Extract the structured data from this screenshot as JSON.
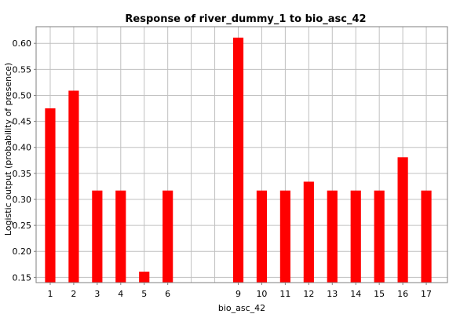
{
  "chart_data": {
    "type": "bar",
    "title": "Response of river_dummy_1 to bio_asc_42",
    "xlabel": "bio_asc_42",
    "ylabel": "Logistic output (probability of presence)",
    "categories": [
      "1",
      "2",
      "3",
      "4",
      "5",
      "6",
      "9",
      "10",
      "11",
      "12",
      "13",
      "14",
      "15",
      "16",
      "17"
    ],
    "x": [
      1,
      2,
      3,
      4,
      5,
      6,
      9,
      10,
      11,
      12,
      13,
      14,
      15,
      16,
      17
    ],
    "values": [
      0.475,
      0.509,
      0.317,
      0.317,
      0.161,
      0.317,
      0.611,
      0.317,
      0.317,
      0.334,
      0.317,
      0.317,
      0.317,
      0.381,
      0.317
    ],
    "xlim": [
      0.4,
      17.9
    ],
    "ylim": [
      0.14,
      0.632
    ],
    "yticks": [
      "0.15",
      "0.20",
      "0.25",
      "0.30",
      "0.35",
      "0.40",
      "0.45",
      "0.50",
      "0.55",
      "0.60"
    ],
    "grid": true,
    "bar_color": "#ff0000",
    "grid_color": "#c0c0c0"
  }
}
